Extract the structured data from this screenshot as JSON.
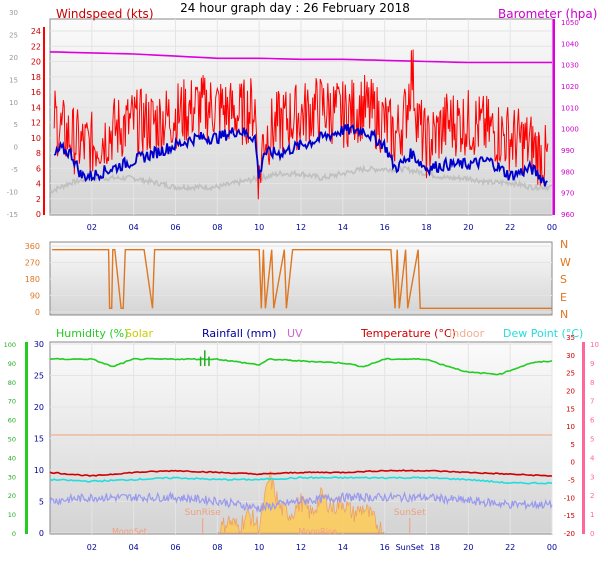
{
  "title": "24 hour graph day : 26 February 2018",
  "x_ticks": [
    "02",
    "04",
    "06",
    "08",
    "10",
    "12",
    "14",
    "16",
    "18",
    "20",
    "22",
    "00"
  ],
  "x_ticks_bottom": [
    "02",
    "04",
    "06",
    "08",
    "10",
    "12",
    "14",
    "16",
    "SunSet",
    "18",
    "20",
    "22",
    "00"
  ],
  "colors": {
    "wind": "#ff0000",
    "wind_avg": "#0000cc",
    "gust_bg": "#c0c0c0",
    "baro": "#dd00dd",
    "dir": "#dd7722",
    "hum": "#22cc22",
    "solar": "#cccc00",
    "rain": "#000099",
    "uv": "#cc66cc",
    "temp": "#cc0000",
    "indoor": "#f0b090",
    "dew": "#22dddd",
    "apparent": "#9999ee"
  },
  "chart_data": [
    {
      "type": "line",
      "title": "24 hour graph day : 26 February 2018",
      "x_range": [
        0,
        24
      ],
      "left_axis": {
        "label": "Windspeed (kts)",
        "range": [
          0,
          24
        ],
        "ticks": [
          0,
          2,
          4,
          6,
          8,
          10,
          12,
          14,
          16,
          18,
          20,
          22,
          24
        ]
      },
      "left_axis2": {
        "ticks": [
          -15,
          -10,
          -5,
          0,
          5,
          10,
          15,
          20,
          25,
          30
        ]
      },
      "right_axis": {
        "label": "Barometer (hpa)",
        "range": [
          960,
          1050
        ],
        "ticks": [
          960,
          970,
          980,
          990,
          1000,
          1010,
          1020,
          1030,
          1040,
          1050
        ]
      },
      "series": [
        {
          "name": "Windspeed",
          "axis": "left",
          "x": [
            0.2,
            0.5,
            1,
            1.5,
            2,
            3,
            4,
            5,
            6,
            7,
            8,
            9,
            9.8,
            10,
            10.2,
            11,
            12,
            13,
            14,
            15,
            16,
            16.5,
            17,
            17.3,
            17.6,
            18,
            19,
            20,
            21,
            22,
            23,
            23.8
          ],
          "y": [
            13,
            11,
            10,
            9,
            9,
            11,
            12,
            12,
            13,
            14,
            14,
            13,
            14,
            4,
            10,
            12,
            13,
            14,
            13,
            14,
            12,
            10,
            13,
            19,
            12,
            9,
            12,
            12,
            11,
            10,
            9,
            7
          ]
        },
        {
          "name": "Avg",
          "axis": "left",
          "x": [
            0.2,
            0.5,
            1,
            1.5,
            2,
            3,
            4,
            5,
            6,
            7,
            8,
            9,
            9.8,
            10,
            10.2,
            11,
            12,
            13,
            14,
            15,
            16,
            16.5,
            17,
            17.3,
            17.6,
            18,
            19,
            20,
            21,
            22,
            23,
            23.8
          ],
          "y": [
            7.5,
            8.5,
            8,
            5,
            5,
            6,
            7,
            8,
            9,
            10,
            10,
            11,
            10,
            4.5,
            8,
            8,
            9,
            10,
            11,
            11,
            9,
            6,
            7,
            8,
            7,
            6,
            6.5,
            6.5,
            7,
            5,
            6,
            4
          ]
        },
        {
          "name": "Gust",
          "axis": "left2",
          "x": [
            0,
            1,
            2,
            3,
            4,
            5,
            6,
            7,
            8,
            9,
            10,
            11,
            12,
            13,
            14,
            15,
            16,
            17,
            18,
            19,
            20,
            21,
            22,
            23,
            24
          ],
          "y": [
            -10,
            -8,
            -7,
            -7,
            -7,
            -8,
            -9,
            -9,
            -9,
            -8,
            -7,
            -6,
            -6,
            -7,
            -6,
            -5,
            -5,
            -5,
            -6,
            -7,
            -7,
            -8,
            -8,
            -9,
            -9
          ]
        },
        {
          "name": "Barometer",
          "axis": "right",
          "x": [
            0,
            2,
            4,
            6,
            8,
            10,
            12,
            14,
            16,
            18,
            20,
            22,
            24
          ],
          "y": [
            1036,
            1035.5,
            1035,
            1034,
            1033,
            1033,
            1032.5,
            1032.5,
            1032,
            1031.5,
            1031,
            1031,
            1031
          ]
        }
      ]
    },
    {
      "type": "line",
      "x_range": [
        0,
        24
      ],
      "left_axis": {
        "range": [
          0,
          360
        ],
        "ticks": [
          0,
          90,
          180,
          270,
          360
        ]
      },
      "right_labels": [
        "N",
        "W",
        "S",
        "E",
        "N"
      ],
      "series": [
        {
          "name": "Wind direction",
          "x": [
            0.1,
            2.8,
            2.85,
            2.95,
            3.0,
            3.1,
            3.4,
            3.5,
            3.6,
            4.5,
            4.9,
            5.0,
            10,
            10.1,
            10.2,
            10.3,
            10.6,
            10.7,
            11.2,
            11.3,
            11.6,
            16.3,
            16.5,
            16.6,
            16.7,
            17.0,
            17.1,
            17.6,
            17.7,
            18.0,
            24
          ],
          "y": [
            340,
            340,
            20,
            20,
            340,
            340,
            20,
            20,
            340,
            340,
            20,
            340,
            340,
            20,
            340,
            20,
            340,
            20,
            340,
            20,
            340,
            340,
            20,
            340,
            20,
            340,
            20,
            340,
            20,
            20,
            20
          ]
        }
      ]
    },
    {
      "type": "line",
      "x_range": [
        0,
        24
      ],
      "legend": [
        "Humidity (%)",
        "Solar",
        "Rainfall (mm)",
        "UV",
        "Temperature (°C)",
        "Indoor",
        "Dew Point (°C)"
      ],
      "left_axis": {
        "ticks": [
          0,
          10,
          20,
          30,
          40,
          50,
          60,
          70,
          80,
          90,
          100
        ]
      },
      "left_axis2": {
        "ticks": [
          0,
          5,
          10,
          15,
          20,
          25,
          30
        ]
      },
      "right_axis": {
        "ticks": [
          -20,
          -15,
          -10,
          -5,
          0,
          5,
          10,
          15,
          20,
          25,
          30,
          35
        ]
      },
      "right_axis2": {
        "ticks": [
          0,
          1,
          2,
          3,
          4,
          5,
          6,
          7,
          8,
          9,
          10
        ]
      },
      "annotations": [
        "SunRise",
        "SunSet",
        "MoonSet",
        "MoonRise"
      ],
      "series": [
        {
          "name": "Humidity (%)",
          "x": [
            0,
            2,
            2.5,
            3,
            4,
            6,
            8,
            10,
            10.5,
            12,
            14,
            15,
            16,
            18,
            18.5,
            20,
            21.5,
            22,
            23,
            24
          ],
          "y": [
            92,
            92,
            90,
            88,
            92,
            92,
            92,
            89,
            92,
            91,
            90,
            88,
            92,
            92,
            90,
            85,
            84,
            86,
            90,
            91
          ]
        },
        {
          "name": "Temperature (°C)",
          "x": [
            0,
            2,
            4,
            6,
            8,
            10,
            12,
            14,
            16,
            18,
            20,
            22,
            24
          ],
          "y": [
            -3,
            -4,
            -3,
            -2.5,
            -3,
            -3.5,
            -3,
            -3,
            -2.5,
            -2.5,
            -3,
            -3.5,
            -4
          ]
        },
        {
          "name": "Dew Point (°C)",
          "x": [
            0,
            2,
            4,
            6,
            8,
            10,
            12,
            14,
            16,
            18,
            20,
            22,
            24
          ],
          "y": [
            -5,
            -5.5,
            -5,
            -4.5,
            -5,
            -5,
            -4.5,
            -4.5,
            -4.5,
            -4.5,
            -5,
            -6,
            -6
          ]
        },
        {
          "name": "Apparent",
          "x": [
            0,
            2,
            4,
            6,
            8,
            10,
            12,
            14,
            16,
            18,
            20,
            22,
            24
          ],
          "y": [
            -11,
            -10,
            -10,
            -10,
            -11,
            -13,
            -11,
            -10,
            -10,
            -10,
            -11,
            -12,
            -12
          ]
        },
        {
          "name": "Indoor",
          "x": [
            0,
            24
          ],
          "y": [
            7.5,
            7.5
          ]
        },
        {
          "name": "Solar",
          "x": [
            8,
            8.5,
            9,
            9.5,
            10,
            10.5,
            11,
            11.5,
            12,
            12.5,
            13,
            13.5,
            14,
            14.5,
            15,
            15.5,
            16
          ],
          "y": [
            0,
            2,
            1,
            3,
            1,
            9,
            4,
            3,
            5,
            3,
            6,
            4,
            5,
            3,
            4,
            2,
            0
          ]
        },
        {
          "name": "Rainfall (mm)",
          "x": [
            7.2,
            7.4,
            7.6
          ],
          "y": [
            28,
            29,
            28
          ]
        }
      ]
    }
  ]
}
